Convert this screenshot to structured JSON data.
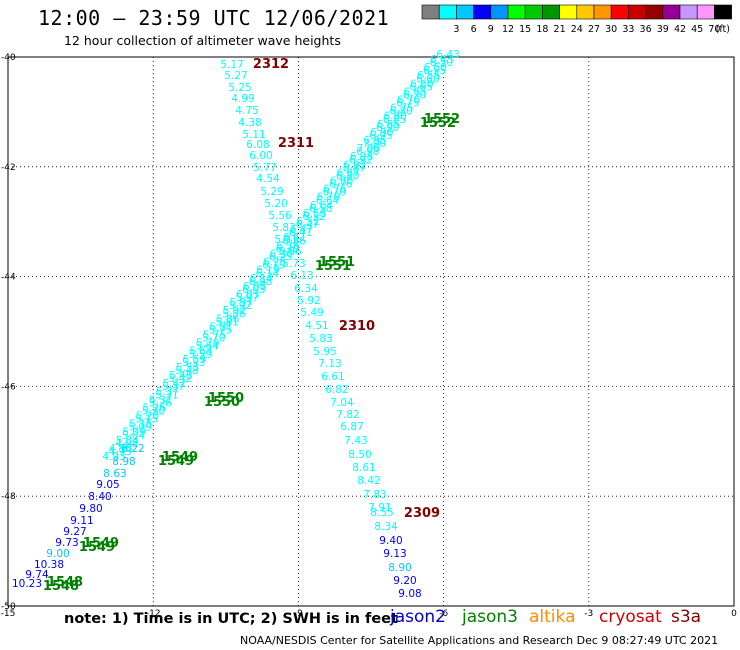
{
  "header": {
    "title": "12:00 – 23:59 UTC 12/06/2021",
    "subtitle": "12 hour collection of altimeter wave heights"
  },
  "legend": {
    "unit": "(ft)",
    "bins": [
      {
        "label": "",
        "color": "#808080"
      },
      {
        "label": "3",
        "color": "#00ffff"
      },
      {
        "label": "6",
        "color": "#00c8ff"
      },
      {
        "label": "9",
        "color": "#0000ff"
      },
      {
        "label": "12",
        "color": "#0096ff"
      },
      {
        "label": "15",
        "color": "#00ff00"
      },
      {
        "label": "18",
        "color": "#00c800"
      },
      {
        "label": "21",
        "color": "#009600"
      },
      {
        "label": "24",
        "color": "#ffff00"
      },
      {
        "label": "27",
        "color": "#ffc800"
      },
      {
        "label": "30",
        "color": "#ff9600"
      },
      {
        "label": "33",
        "color": "#ff0000"
      },
      {
        "label": "36",
        "color": "#c80000"
      },
      {
        "label": "39",
        "color": "#960000"
      },
      {
        "label": "42",
        "color": "#960096"
      },
      {
        "label": "45",
        "color": "#c896ff"
      },
      {
        "label": "70",
        "color": "#ff96ff"
      },
      {
        "label": "",
        "color": "#000000"
      }
    ]
  },
  "map": {
    "lon_range": [
      -15,
      0
    ],
    "lat_range": [
      -50,
      -40
    ],
    "lon_ticks": [
      "-15",
      "-12",
      "-9",
      "-6",
      "-3",
      "0"
    ],
    "lat_ticks": [
      "-40",
      "-42",
      "-44",
      "-46",
      "-48",
      "-50"
    ],
    "grid": "dotted"
  },
  "tracks": {
    "ascending": {
      "color": "#00ffff",
      "values": [
        "6.43",
        "6.50",
        "6.55",
        "6.60",
        "6.65",
        "6.70",
        "6.75",
        "6.80",
        "6.85",
        "6.90",
        "6.95",
        "7.00",
        "6.98",
        "6.92",
        "6.87",
        "6.80",
        "6.76",
        "6.70",
        "6.64",
        "6.58",
        "6.52",
        "6.47",
        "6.41",
        "6.36",
        "6.30",
        "6.25",
        "6.19",
        "6.14",
        "6.08",
        "6.03",
        "5.97",
        "5.92",
        "5.86",
        "5.81",
        "5.75",
        "5.70",
        "5.64",
        "5.59",
        "5.53",
        "5.48",
        "5.42",
        "5.37",
        "5.31",
        "5.26",
        "5.20",
        "5.15",
        "5.09",
        "5.04",
        "4.98",
        "4.93"
      ],
      "tail_values": [
        "8.22",
        "8.98",
        "8.63",
        "9.05",
        "8.40",
        "9.80",
        "9.11",
        "9.27",
        "9.73",
        "9.00",
        "10.38",
        "9.74",
        "10.23"
      ]
    },
    "descending": {
      "color": "#00ffff",
      "values": [
        "5.17",
        "5.27",
        "5.25",
        "4.99",
        "4.75",
        "4.38",
        "5.11",
        "6.08",
        "6.00",
        "5.77",
        "4.54",
        "5.29",
        "5.20",
        "5.56",
        "5.83",
        "5.31",
        "5.86",
        "5.73",
        "6.13",
        "6.34",
        "5.92",
        "5.49",
        "4.51",
        "5.83",
        "5.95",
        "7.13",
        "6.61",
        "6.82",
        "7.04",
        "7.82",
        "6.87",
        "7.43",
        "8.50",
        "8.61",
        "8.42",
        "7.83",
        "7.91",
        "8.55",
        "8.34"
      ],
      "tail_values": [
        "9.40",
        "9.13",
        "8.90",
        "9.20",
        "9.08"
      ]
    }
  },
  "time_labels": [
    {
      "text": "2312",
      "color": "#800000"
    },
    {
      "text": "2311",
      "color": "#800000"
    },
    {
      "text": "2310",
      "color": "#800000"
    },
    {
      "text": "2309",
      "color": "#800000"
    },
    {
      "text": "1552",
      "color": "#008000"
    },
    {
      "text": "1551",
      "color": "#008000"
    },
    {
      "text": "1550",
      "color": "#008000"
    },
    {
      "text": "1549",
      "color": "#008000"
    },
    {
      "text": "1549",
      "color": "#008000"
    },
    {
      "text": "1548",
      "color": "#008000"
    }
  ],
  "footer": {
    "note": "note:  1) Time is in UTC;  2) SWH is in feet",
    "credit": "NOAA/NESDIS Center for Satellite Applications and Research    Dec  9 08:27:49 UTC 2021",
    "satellites": [
      {
        "name": "jason2",
        "color": "#0000cc"
      },
      {
        "name": "jason3",
        "color": "#008000"
      },
      {
        "name": "altika",
        "color": "#ff8c00"
      },
      {
        "name": "cryosat",
        "color": "#cc0000"
      },
      {
        "name": "s3a",
        "color": "#800000"
      }
    ]
  }
}
